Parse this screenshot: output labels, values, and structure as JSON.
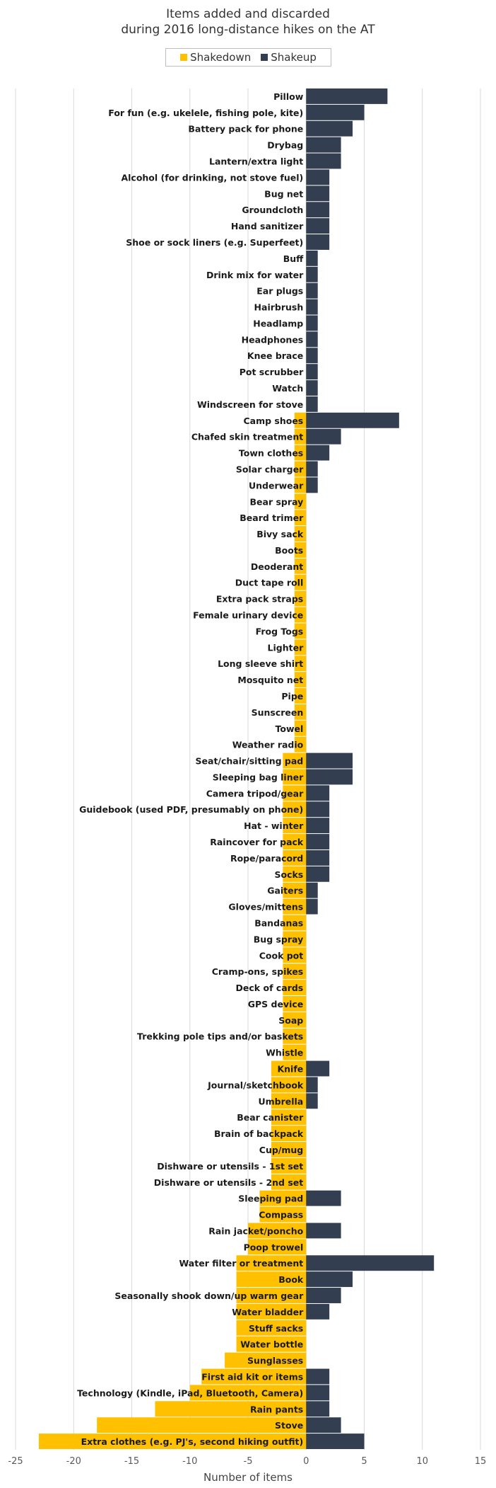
{
  "chart_data": {
    "type": "bar",
    "orientation": "horizontal",
    "title_line1": "Items added and discarded",
    "title_line2": "during 2016 long-distance hikes on the AT",
    "xlabel": "Number of items",
    "xlim": [
      -25,
      15
    ],
    "xticks": [
      -25,
      -20,
      -15,
      -10,
      -5,
      0,
      5,
      10,
      15
    ],
    "grid": "vertical",
    "legend_position": "top",
    "series": [
      {
        "name": "Shakedown",
        "color": "#FFC000"
      },
      {
        "name": "Shakeup",
        "color": "#333F50"
      }
    ],
    "categories": [
      "Pillow",
      "For fun (e.g. ukelele, fishing pole, kite)",
      "Battery pack for phone",
      "Drybag",
      "Lantern/extra light",
      "Alcohol (for drinking, not stove fuel)",
      "Bug net",
      "Groundcloth",
      "Hand sanitizer",
      "Shoe or sock liners (e.g. Superfeet)",
      "Buff",
      "Drink mix for water",
      "Ear plugs",
      "Hairbrush",
      "Headlamp",
      "Headphones",
      "Knee brace",
      "Pot scrubber",
      "Watch",
      "Windscreen for stove",
      "Camp shoes",
      "Chafed skin treatment",
      "Town clothes",
      "Solar charger",
      "Underwear",
      "Bear spray",
      "Beard trimer",
      "Bivy sack",
      "Boots",
      "Deoderant",
      "Duct tape roll",
      "Extra pack straps",
      "Female urinary device",
      "Frog Togs",
      "Lighter",
      "Long sleeve shirt",
      "Mosquito net",
      "Pipe",
      "Sunscreen",
      "Towel",
      "Weather radio",
      "Seat/chair/sitting pad",
      "Sleeping bag liner",
      "Camera tripod/gear",
      "Guidebook (used PDF, presumably on phone)",
      "Hat - winter",
      "Raincover for pack",
      "Rope/paracord",
      "Socks",
      "Gaiters",
      "Gloves/mittens",
      "Bandanas",
      "Bug spray",
      "Cook pot",
      "Cramp-ons, spikes",
      "Deck of cards",
      "GPS device",
      "Soap",
      "Trekking pole tips and/or baskets",
      "Whistle",
      "Knife",
      "Journal/sketchbook",
      "Umbrella",
      "Bear canister",
      "Brain of backpack",
      "Cup/mug",
      "Dishware or utensils - 1st set",
      "Dishware or utensils - 2nd set",
      "Sleeping pad",
      "Compass",
      "Rain jacket/poncho",
      "Poop trowel",
      "Water filter or treatment",
      "Book",
      "Seasonally shook down/up warm gear",
      "Water bladder",
      "Stuff sacks",
      "Water bottle",
      "Sunglasses",
      "First aid kit or items",
      "Technology (Kindle, iPad, Bluetooth, Camera)",
      "Rain pants",
      "Stove",
      "Extra clothes (e.g. PJ's, second hiking outfit)"
    ],
    "shakedown": [
      0,
      0,
      0,
      0,
      0,
      0,
      0,
      0,
      0,
      0,
      0,
      0,
      0,
      0,
      0,
      0,
      0,
      0,
      0,
      0,
      -1,
      -1,
      -1,
      -1,
      -1,
      -1,
      -1,
      -1,
      -1,
      -1,
      -1,
      -1,
      -1,
      -1,
      -1,
      -1,
      -1,
      -1,
      -1,
      -1,
      -1,
      -2,
      -2,
      -2,
      -2,
      -2,
      -2,
      -2,
      -2,
      -2,
      -2,
      -2,
      -2,
      -2,
      -2,
      -2,
      -2,
      -2,
      -2,
      -2,
      -3,
      -3,
      -3,
      -3,
      -3,
      -3,
      -3,
      -3,
      -4,
      -4,
      -5,
      -5,
      -6,
      -6,
      -6,
      -6,
      -6,
      -6,
      -7,
      -9,
      -10,
      -13,
      -18,
      -23
    ],
    "shakeup": [
      7,
      5,
      4,
      3,
      3,
      2,
      2,
      2,
      2,
      2,
      1,
      1,
      1,
      1,
      1,
      1,
      1,
      1,
      1,
      1,
      8,
      3,
      2,
      1,
      1,
      0,
      0,
      0,
      0,
      0,
      0,
      0,
      0,
      0,
      0,
      0,
      0,
      0,
      0,
      0,
      0,
      4,
      4,
      2,
      2,
      2,
      2,
      2,
      2,
      1,
      1,
      0,
      0,
      0,
      0,
      0,
      0,
      0,
      0,
      0,
      2,
      1,
      1,
      0,
      0,
      0,
      0,
      0,
      3,
      0,
      3,
      0,
      11,
      4,
      3,
      2,
      0,
      0,
      0,
      2,
      2,
      2,
      3,
      5
    ]
  }
}
